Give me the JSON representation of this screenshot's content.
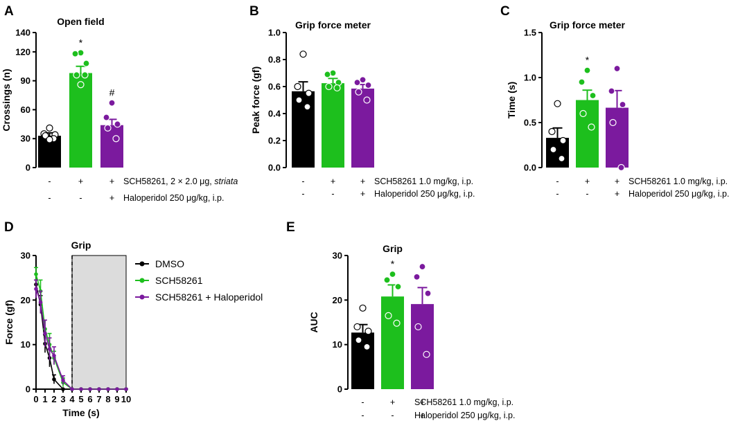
{
  "panels": [
    {
      "id": "A",
      "type": "bar",
      "title": "Open field",
      "ylabel": "Crossings (n)",
      "ylim": [
        0,
        140
      ],
      "yticks": [
        0,
        30,
        60,
        90,
        120,
        140
      ],
      "bars": [
        {
          "mean": 33,
          "sem": 3,
          "color": "#000000",
          "points": [
            41,
            35,
            34,
            33,
            30,
            29
          ],
          "mark": ""
        },
        {
          "mean": 98,
          "sem": 7,
          "color": "#1dbf1d",
          "points": [
            119,
            118,
            108,
            96,
            96,
            86
          ],
          "mark": "*"
        },
        {
          "mean": 44,
          "sem": 6,
          "color": "#7b1a9e",
          "points": [
            67,
            52,
            45,
            41,
            30
          ],
          "mark": "#"
        }
      ],
      "conditions": [
        {
          "signs": [
            "-",
            "+",
            "+"
          ],
          "label": "SCH58261, 2 × 2.0 μg, ",
          "label_italic": "striata"
        },
        {
          "signs": [
            "-",
            "-",
            "+"
          ],
          "label": "Haloperidol 250 μg/kg, i.p.",
          "label_italic": ""
        }
      ]
    },
    {
      "id": "B",
      "type": "bar",
      "title": "Grip force meter",
      "ylabel": "Peak force (gf)",
      "ylim": [
        0,
        1.0
      ],
      "yticks": [
        "0.0",
        "0.2",
        "0.4",
        "0.6",
        "0.8",
        "1.0"
      ],
      "bars": [
        {
          "mean": 0.565,
          "sem": 0.07,
          "color": "#000000",
          "points": [
            0.84,
            0.6,
            0.55,
            0.5,
            0.45
          ],
          "mark": ""
        },
        {
          "mean": 0.625,
          "sem": 0.035,
          "color": "#1dbf1d",
          "points": [
            0.7,
            0.69,
            0.63,
            0.6,
            0.59
          ],
          "mark": ""
        },
        {
          "mean": 0.585,
          "sem": 0.03,
          "color": "#7b1a9e",
          "points": [
            0.65,
            0.63,
            0.61,
            0.56,
            0.5
          ],
          "mark": ""
        }
      ],
      "conditions": [
        {
          "signs": [
            "-",
            "+",
            "+"
          ],
          "label": "SCH58261 1.0 mg/kg, i.p.",
          "label_italic": ""
        },
        {
          "signs": [
            "-",
            "-",
            "+"
          ],
          "label": "Haloperidol 250 μg/kg, i.p.",
          "label_italic": ""
        }
      ]
    },
    {
      "id": "C",
      "type": "bar",
      "title": "Grip force meter",
      "ylabel": "Time (s)",
      "ylim": [
        0,
        1.5
      ],
      "yticks": [
        "0.0",
        "0.5",
        "1.0",
        "1.5"
      ],
      "bars": [
        {
          "mean": 0.33,
          "sem": 0.11,
          "color": "#000000",
          "points": [
            0.71,
            0.4,
            0.3,
            0.2,
            0.1
          ],
          "mark": ""
        },
        {
          "mean": 0.75,
          "sem": 0.11,
          "color": "#1dbf1d",
          "points": [
            1.08,
            0.95,
            0.8,
            0.6,
            0.45
          ],
          "mark": "*"
        },
        {
          "mean": 0.665,
          "sem": 0.19,
          "color": "#7b1a9e",
          "points": [
            1.1,
            0.85,
            0.7,
            0.5,
            0.0
          ],
          "mark": ""
        }
      ],
      "conditions": [
        {
          "signs": [
            "-",
            "+",
            "+"
          ],
          "label": "SCH58261 1.0 mg/kg, i.p.",
          "label_italic": ""
        },
        {
          "signs": [
            "-",
            "-",
            "+"
          ],
          "label": "Haloperidol 250 μg/kg, i.p.",
          "label_italic": ""
        }
      ]
    },
    {
      "id": "E",
      "type": "bar",
      "title": "Grip",
      "ylabel": "AUC",
      "ylim": [
        0,
        30
      ],
      "yticks": [
        0,
        10,
        20,
        30
      ],
      "bars": [
        {
          "mean": 12.7,
          "sem": 1.8,
          "color": "#000000",
          "points": [
            18.2,
            14.0,
            13.0,
            11.0,
            9.5
          ],
          "mark": ""
        },
        {
          "mean": 20.8,
          "sem": 2.6,
          "color": "#1dbf1d",
          "points": [
            25.8,
            24.5,
            23.0,
            16.5,
            14.8
          ],
          "mark": "*"
        },
        {
          "mean": 19.1,
          "sem": 3.7,
          "color": "#7b1a9e",
          "points": [
            27.5,
            25.2,
            21.5,
            14.0,
            7.8
          ],
          "mark": ""
        }
      ],
      "conditions": [
        {
          "signs": [
            "-",
            "+",
            "+"
          ],
          "label": "SCH58261 1.0 mg/kg, i.p.",
          "label_italic": ""
        },
        {
          "signs": [
            "-",
            "-",
            "+"
          ],
          "label": "Haloperidol 250 μg/kg, i.p.",
          "label_italic": ""
        }
      ]
    }
  ],
  "chart_data": {
    "type": "line",
    "id": "D",
    "title": "Grip",
    "xlabel": "Time (s)",
    "ylabel": "Force (gf)",
    "xlim": [
      0,
      10
    ],
    "ylim": [
      0,
      30
    ],
    "xticks": [
      0,
      1,
      2,
      3,
      4,
      5,
      6,
      7,
      8,
      9,
      10
    ],
    "yticks": [
      0,
      10,
      20,
      30
    ],
    "cutoff_x": 4,
    "shade_from": 4,
    "shade_to": 10,
    "x": [
      0,
      0.5,
      1,
      1.5,
      2,
      3,
      4,
      5,
      6,
      7,
      8,
      9,
      10
    ],
    "series": [
      {
        "name": "DMSO",
        "color": "#000000",
        "values": [
          23.5,
          19,
          10.2,
          7,
          2.2,
          0,
          0,
          0,
          0,
          0,
          0,
          0,
          0
        ],
        "errors": [
          1,
          2,
          2,
          2,
          1,
          0,
          0,
          0,
          0,
          0,
          0,
          0,
          0
        ]
      },
      {
        "name": "SCH58261",
        "color": "#1dbf1d",
        "values": [
          25.8,
          22,
          13.5,
          10,
          7,
          1.5,
          0,
          0,
          0,
          0,
          0,
          0,
          0
        ],
        "errors": [
          1.5,
          2.5,
          2,
          2.5,
          1.5,
          1,
          0,
          0,
          0,
          0,
          0,
          0,
          0
        ]
      },
      {
        "name": "SCH58261 + Haloperidol",
        "color": "#7b1a9e",
        "values": [
          22.5,
          19.5,
          12.5,
          9,
          7.5,
          2,
          0,
          0,
          0,
          0,
          0,
          0,
          0
        ],
        "errors": [
          2,
          2.5,
          3,
          2.5,
          2,
          1,
          0,
          0,
          0,
          0,
          0,
          0,
          0
        ]
      }
    ]
  }
}
